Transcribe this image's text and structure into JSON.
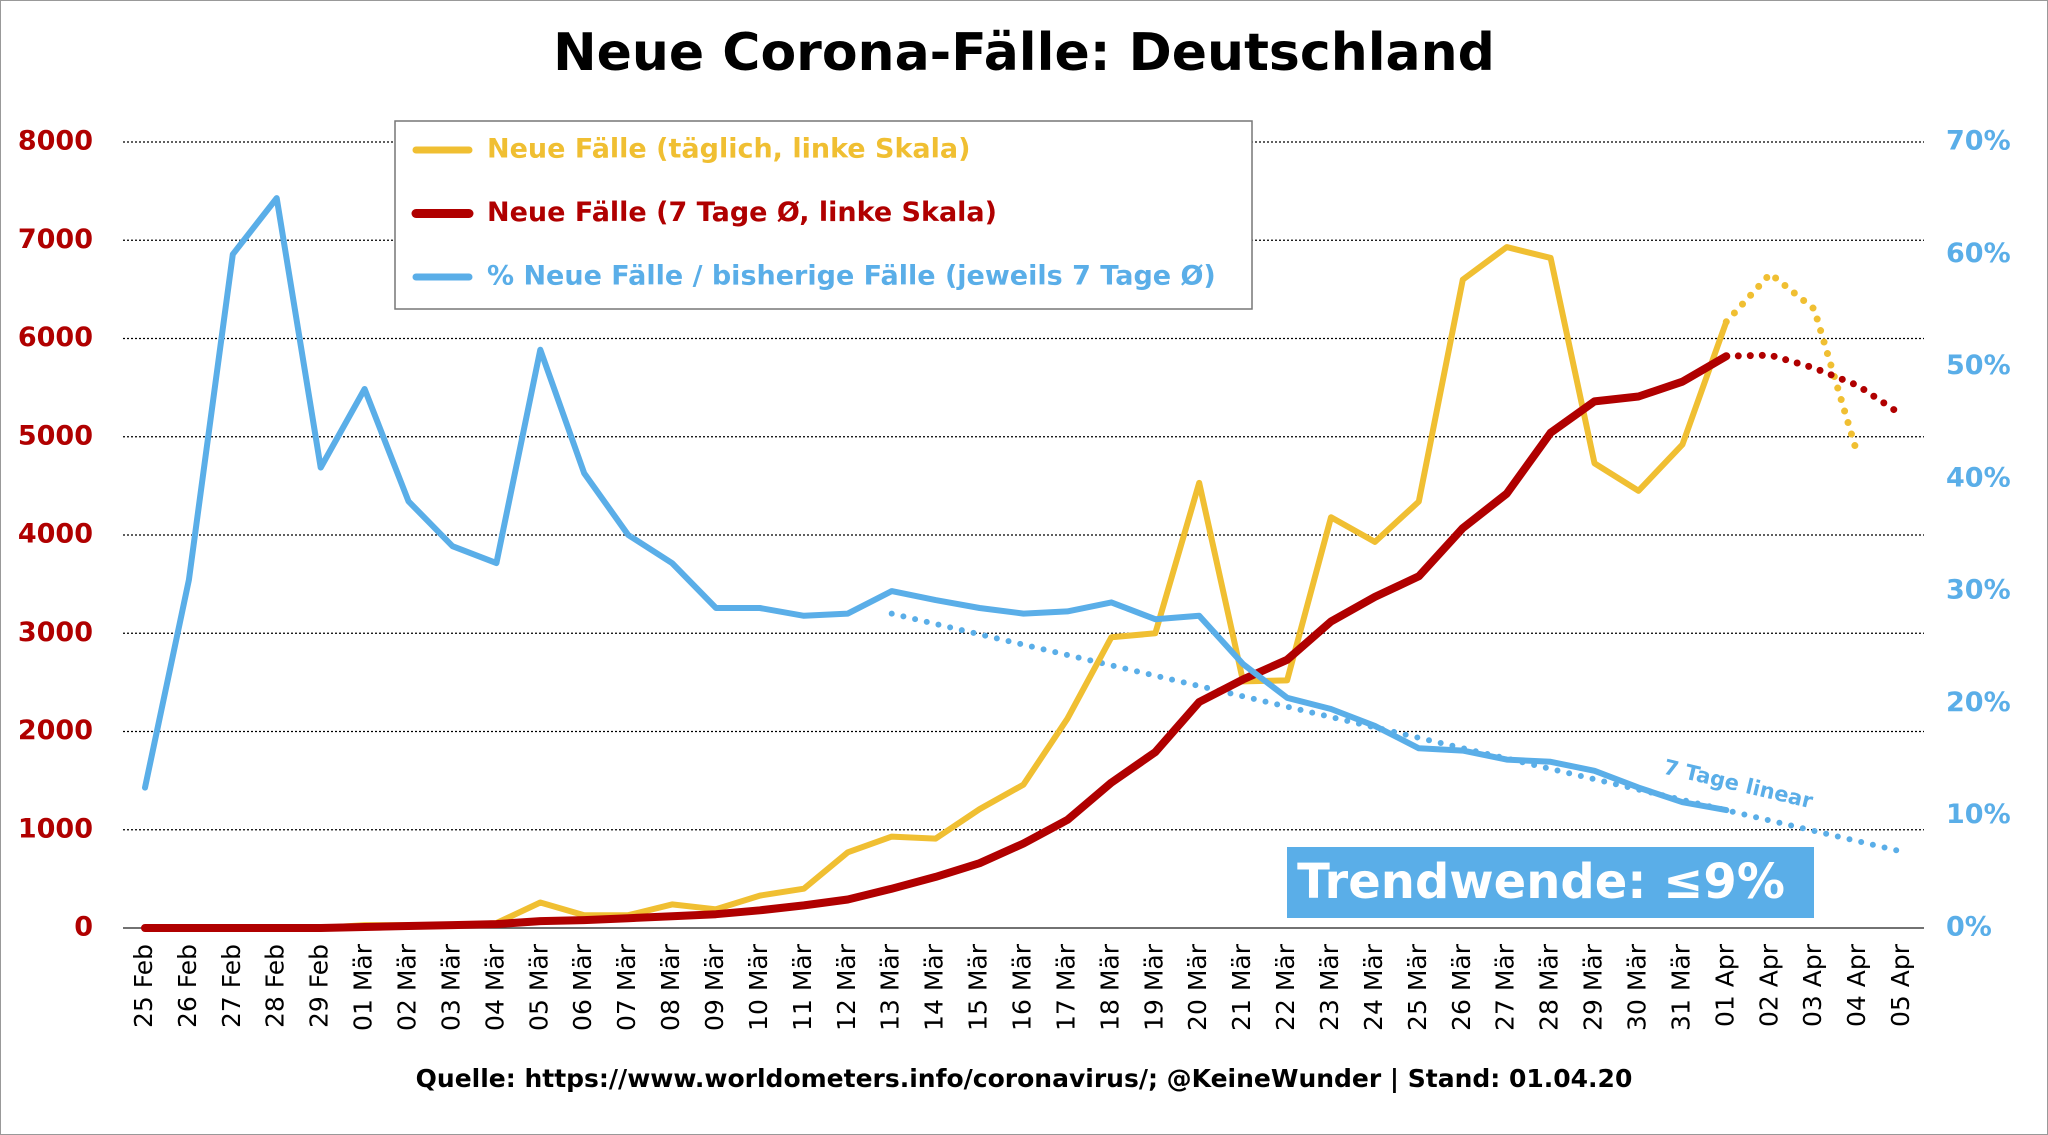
{
  "chart_data": {
    "type": "line",
    "title": "Neue Corona-Fälle: Deutschland",
    "footer": "Quelle: https://www.worldometers.info/coronavirus/; @KeineWunder   |   Stand: 01.04.20",
    "annotation": "Trendwende: ≤9%",
    "categories": [
      "25 Feb",
      "26 Feb",
      "27 Feb",
      "28 Feb",
      "29 Feb",
      "01 Mär",
      "02 Mär",
      "03 Mär",
      "04 Mär",
      "05 Mär",
      "06 Mär",
      "07 Mär",
      "08 Mär",
      "09 Mär",
      "10 Mär",
      "11 Mär",
      "12 Mär",
      "13 Mär",
      "14 Mär",
      "15 Mär",
      "16 Mär",
      "17 Mär",
      "18 Mär",
      "19 Mär",
      "20 Mär",
      "21 Mär",
      "22 Mär",
      "23 Mär",
      "24 Mär",
      "25 Mär",
      "26 Mär",
      "27 Mär",
      "28 Mär",
      "29 Mär",
      "30 Mär",
      "31 Mär",
      "01 Apr",
      "02 Apr",
      "03 Apr",
      "04 Apr",
      "05 Apr"
    ],
    "ylim": [
      0,
      8000
    ],
    "yticks": [
      0,
      1000,
      2000,
      3000,
      4000,
      5000,
      6000,
      7000,
      8000
    ],
    "y2lim": [
      0,
      70
    ],
    "y2ticks": [
      {
        "value": 0,
        "label": "0%"
      },
      {
        "value": 10,
        "label": "10%"
      },
      {
        "value": 20,
        "label": "20%"
      },
      {
        "value": 30,
        "label": "30%"
      },
      {
        "value": 40,
        "label": "40%"
      },
      {
        "value": 50,
        "label": "50%"
      },
      {
        "value": 60,
        "label": "60%"
      },
      {
        "value": 70,
        "label": "70%"
      }
    ],
    "grid": true,
    "series": [
      {
        "name": "Neue Fälle (täglich, linke Skala)",
        "color": "#f0bf32",
        "axis": "y",
        "values": [
          0,
          0,
          0,
          0,
          0,
          30,
          30,
          30,
          50,
          260,
          130,
          130,
          240,
          190,
          330,
          400,
          770,
          930,
          910,
          1210,
          1460,
          2130,
          2960,
          3000,
          4530,
          2510,
          2520,
          4180,
          3930,
          4340,
          6600,
          6930,
          6820,
          4730,
          4450,
          4920,
          6170,
          null,
          null,
          null,
          null
        ],
        "projection": [
          null,
          null,
          null,
          null,
          null,
          null,
          null,
          null,
          null,
          null,
          null,
          null,
          null,
          null,
          null,
          null,
          null,
          null,
          null,
          null,
          null,
          null,
          null,
          null,
          null,
          null,
          null,
          null,
          null,
          null,
          null,
          null,
          null,
          null,
          null,
          null,
          6170,
          6660,
          6300,
          4800,
          null
        ]
      },
      {
        "name": "Neue Fälle (7 Tage Ø, linke Skala)",
        "color": "#b00000",
        "axis": "y",
        "values": [
          0,
          0,
          0,
          0,
          0,
          10,
          20,
          30,
          40,
          70,
          80,
          100,
          120,
          140,
          180,
          230,
          290,
          400,
          520,
          660,
          860,
          1100,
          1480,
          1790,
          2300,
          2530,
          2730,
          3120,
          3370,
          3580,
          4070,
          4420,
          5040,
          5360,
          5410,
          5560,
          5820,
          null,
          null,
          null,
          null
        ],
        "projection": [
          null,
          null,
          null,
          null,
          null,
          null,
          null,
          null,
          null,
          null,
          null,
          null,
          null,
          null,
          null,
          null,
          null,
          null,
          null,
          null,
          null,
          null,
          null,
          null,
          null,
          null,
          null,
          null,
          null,
          null,
          null,
          null,
          null,
          null,
          null,
          null,
          5820,
          5830,
          5700,
          5520,
          5220
        ]
      },
      {
        "name": "% Neue Fälle / bisherige Fälle (jeweils 7 Tage Ø)",
        "color": "#5aaee8",
        "axis": "y2",
        "values": [
          12.5,
          31,
          60,
          65,
          41,
          48,
          38,
          34,
          32.5,
          51.5,
          40.5,
          35,
          32.5,
          28.5,
          28.5,
          27.8,
          28,
          30,
          29.2,
          28.5,
          28,
          28.2,
          29,
          27.5,
          27.8,
          23.5,
          20.5,
          19.5,
          18,
          16,
          15.8,
          15,
          14.8,
          14,
          12.5,
          11.2,
          10.5,
          null,
          null,
          null,
          null
        ]
      }
    ],
    "trend": {
      "label": "7 Tage linear",
      "x": [
        "13 Mär",
        "05 Apr"
      ],
      "values": [
        28,
        6.8
      ]
    }
  }
}
